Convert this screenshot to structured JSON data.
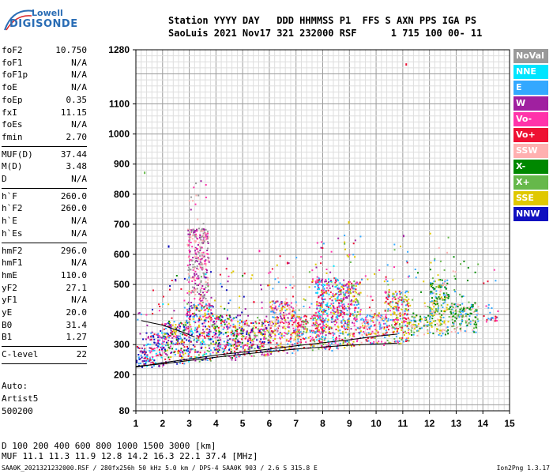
{
  "logo": {
    "line1": "Lowell",
    "line2": "DIGISONDE"
  },
  "header": {
    "row1": "Station YYYY DAY   DDD HHMMSS P1  FFS S AXN PPS IGA PS",
    "row2": "SaoLuis 2021 Nov17 321 232000 RSF      1 715 100 00- 11"
  },
  "params": {
    "group1": [
      {
        "name": "foF2",
        "value": "10.750"
      },
      {
        "name": "foF1",
        "value": "N/A"
      },
      {
        "name": "foF1p",
        "value": "N/A"
      },
      {
        "name": "foE",
        "value": "N/A"
      },
      {
        "name": "foEp",
        "value": "0.35"
      },
      {
        "name": "fxI",
        "value": "11.15"
      },
      {
        "name": "foEs",
        "value": "N/A"
      },
      {
        "name": "fmin",
        "value": "2.70"
      }
    ],
    "group2": [
      {
        "name": "MUF(D)",
        "value": "37.44"
      },
      {
        "name": "M(D)",
        "value": "3.48"
      },
      {
        "name": "D",
        "value": "N/A"
      }
    ],
    "group3": [
      {
        "name": "h`F",
        "value": "260.0"
      },
      {
        "name": "h`F2",
        "value": "260.0"
      },
      {
        "name": "h`E",
        "value": "N/A"
      },
      {
        "name": "h`Es",
        "value": "N/A"
      }
    ],
    "group4": [
      {
        "name": "hmF2",
        "value": "296.0"
      },
      {
        "name": "hmF1",
        "value": "N/A"
      },
      {
        "name": "hmE",
        "value": "110.0"
      },
      {
        "name": "yF2",
        "value": "27.1"
      },
      {
        "name": "yF1",
        "value": "N/A"
      },
      {
        "name": "yE",
        "value": "20.0"
      },
      {
        "name": "B0",
        "value": "31.4"
      },
      {
        "name": "B1",
        "value": "1.27"
      }
    ],
    "group5": [
      {
        "name": "C-level",
        "value": "22"
      }
    ]
  },
  "autoscale": {
    "line1": "Auto:",
    "line2": "Artist5",
    "line3": "500200"
  },
  "legend": [
    {
      "label": "NoVal",
      "color": "#999999"
    },
    {
      "label": "NNE",
      "color": "#00e5ff"
    },
    {
      "label": "E",
      "color": "#33a8ff"
    },
    {
      "label": "W",
      "color": "#a020a0"
    },
    {
      "label": "Vo-",
      "color": "#ff33aa"
    },
    {
      "label": "Vo+",
      "color": "#ee1133"
    },
    {
      "label": "SSW",
      "color": "#ffb0b0"
    },
    {
      "label": "X-",
      "color": "#008800"
    },
    {
      "label": "X+",
      "color": "#66b84a"
    },
    {
      "label": "SSE",
      "color": "#e0c800"
    },
    {
      "label": "NNW",
      "color": "#1010c0"
    }
  ],
  "bottom": {
    "d_row": "D     100  200  400  600  800 1000 1500 3000 [km]",
    "muf_row": "MUF  11.1 11.3 11.9 12.8 14.2 16.3 22.1 37.4 [MHz]"
  },
  "footer": {
    "left": "SAA0K_2021321232000.RSF / 280fx256h 50 kHz 5.0 km / DPS-4 SAA0K 903 / 2.6 S 315.8 E",
    "right": "Ion2Png 1.3.17"
  },
  "chart_data": {
    "type": "scatter",
    "xlim": [
      1,
      15
    ],
    "ylim": [
      80,
      1280
    ],
    "xticks": [
      1,
      2,
      3,
      4,
      5,
      6,
      7,
      8,
      9,
      10,
      11,
      12,
      13,
      14,
      15
    ],
    "yticks": [
      80,
      200,
      300,
      400,
      500,
      600,
      700,
      800,
      900,
      1000,
      1100,
      1280
    ],
    "grid": true,
    "traces": [
      {
        "x": [
          1.0,
          1.5,
          2.0,
          3.0,
          4.0,
          5.0,
          6.0,
          7.0,
          8.0,
          9.0,
          10.0,
          10.8
        ],
        "y": [
          225,
          232,
          240,
          252,
          265,
          275,
          285,
          296,
          306,
          316,
          328,
          335
        ]
      },
      {
        "x": [
          1.0,
          2.0,
          3.0,
          4.0,
          5.0,
          6.0,
          7.0,
          8.0,
          9.0,
          10.0,
          10.8
        ],
        "y": [
          228,
          236,
          247,
          258,
          268,
          277,
          285,
          292,
          298,
          302,
          305
        ]
      },
      {
        "x": [
          1.2,
          1.6,
          2.0,
          2.4,
          2.8,
          3.2
        ],
        "y": [
          380,
          372,
          365,
          352,
          340,
          325
        ]
      }
    ],
    "blocks": [
      {
        "f1": 1.0,
        "f2": 1.35,
        "h1": 215,
        "h2": 300,
        "c": [
          "#ee1133",
          "#a020a0",
          "#1010c0",
          "#33a8ff"
        ]
      },
      {
        "f1": 1.35,
        "f2": 2.0,
        "h1": 225,
        "h2": 345,
        "c": [
          "#ee1133",
          "#a020a0",
          "#ff33aa",
          "#1010c0",
          "#33a8ff",
          "#00e5ff"
        ]
      },
      {
        "f1": 2.0,
        "f2": 2.85,
        "h1": 235,
        "h2": 380,
        "c": [
          "#ee1133",
          "#a020a0",
          "#ff33aa",
          "#1010c0",
          "#e0c800",
          "#008800",
          "#33a8ff"
        ]
      },
      {
        "f1": 2.85,
        "f2": 3.9,
        "h1": 245,
        "h2": 440,
        "c": [
          "#ee1133",
          "#a020a0",
          "#ff33aa",
          "#1010c0",
          "#e0c800",
          "#66b84a",
          "#33a8ff",
          "#00e5ff"
        ]
      },
      {
        "f1": 2.9,
        "f2": 3.7,
        "h1": 440,
        "h2": 690,
        "c": [
          "#a020a0",
          "#ff33aa",
          "#999999",
          "#ffb0b0"
        ]
      },
      {
        "f1": 3.9,
        "f2": 5.0,
        "h1": 250,
        "h2": 400,
        "c": [
          "#ee1133",
          "#a020a0",
          "#ff33aa",
          "#1010c0",
          "#e0c800",
          "#33a8ff",
          "#008800"
        ]
      },
      {
        "f1": 5.0,
        "f2": 6.0,
        "h1": 262,
        "h2": 385,
        "c": [
          "#ee1133",
          "#ff33aa",
          "#a020a0",
          "#e0c800",
          "#1010c0",
          "#66b84a"
        ]
      },
      {
        "f1": 6.0,
        "f2": 7.0,
        "h1": 270,
        "h2": 450,
        "c": [
          "#ee1133",
          "#ff33aa",
          "#a020a0",
          "#e0c800",
          "#33a8ff",
          "#ffb0b0"
        ]
      },
      {
        "f1": 7.0,
        "f2": 8.0,
        "h1": 282,
        "h2": 400,
        "c": [
          "#ee1133",
          "#ff33aa",
          "#e0c800",
          "#33a8ff",
          "#66b84a"
        ]
      },
      {
        "f1": 7.7,
        "f2": 8.6,
        "h1": 282,
        "h2": 525,
        "c": [
          "#ee1133",
          "#ff33aa",
          "#e0c800",
          "#33a8ff",
          "#00e5ff",
          "#a020a0"
        ]
      },
      {
        "f1": 8.6,
        "f2": 9.4,
        "h1": 290,
        "h2": 515,
        "c": [
          "#ee1133",
          "#ff33aa",
          "#e0c800",
          "#33a8ff",
          "#66b84a",
          "#a020a0"
        ]
      },
      {
        "f1": 9.4,
        "f2": 10.3,
        "h1": 300,
        "h2": 400,
        "c": [
          "#ee1133",
          "#ff33aa",
          "#e0c800",
          "#33a8ff",
          "#ffb0b0"
        ]
      },
      {
        "f1": 10.3,
        "f2": 11.2,
        "h1": 305,
        "h2": 480,
        "c": [
          "#ee1133",
          "#ff33aa",
          "#e0c800",
          "#33a8ff",
          "#66b84a"
        ]
      },
      {
        "f1": 11.2,
        "f2": 12.0,
        "h1": 330,
        "h2": 400,
        "c": [
          "#66b84a",
          "#008800",
          "#e0c800",
          "#ffb0b0",
          "#33a8ff"
        ]
      },
      {
        "f1": 12.0,
        "f2": 12.7,
        "h1": 330,
        "h2": 520,
        "c": [
          "#33a8ff",
          "#66b84a",
          "#ffb0b0",
          "#008800",
          "#e0c800"
        ]
      },
      {
        "f1": 12.7,
        "f2": 13.8,
        "h1": 340,
        "h2": 440,
        "c": [
          "#66b84a",
          "#008800",
          "#33a8ff",
          "#ffb0b0"
        ]
      },
      {
        "f1": 14.0,
        "f2": 14.6,
        "h1": 378,
        "h2": 400,
        "c": [
          "#ee1133",
          "#ff33aa",
          "#33a8ff"
        ]
      }
    ],
    "outliers": [
      {
        "x": 1.3,
        "y": 875,
        "c": "#66b84a"
      },
      {
        "x": 11.1,
        "y": 1235,
        "c": "#ee1133"
      },
      {
        "x": 11.0,
        "y": 665,
        "c": "#a020a0"
      },
      {
        "x": 8.95,
        "y": 710,
        "c": "#e0c800"
      },
      {
        "x": 2.2,
        "y": 630,
        "c": "#1010c0"
      },
      {
        "x": 6.65,
        "y": 575,
        "c": "#ee1133"
      },
      {
        "x": 5.6,
        "y": 615,
        "c": "#ff33aa"
      },
      {
        "x": 4.4,
        "y": 590,
        "c": "#a020a0"
      }
    ]
  }
}
